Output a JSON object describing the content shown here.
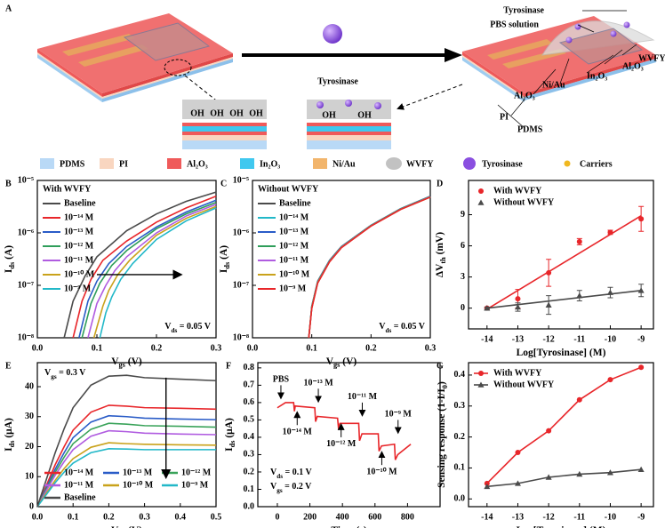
{
  "figure_a": {
    "letter": "A",
    "arrow_label": "Tyrosinase",
    "inset_label": "OH",
    "device_labels": [
      "Tyrosinase",
      "PBS solution",
      "WVFY",
      "Al₂O₃",
      "In₂O₃",
      "Ni/Au",
      "Al₂O₃",
      "PI",
      "PDMS"
    ],
    "legend": [
      {
        "name": "PDMS",
        "color": "#b9d9f6"
      },
      {
        "name": "PI",
        "color": "#f9d6c0"
      },
      {
        "name": "Al₂O₃",
        "color": "#ef5a5a"
      },
      {
        "name": "In₂O₃",
        "color": "#40c8ef"
      },
      {
        "name": "Ni/Au",
        "color": "#f2b56c"
      },
      {
        "name": "WVFY",
        "color": "#9a9a9a"
      },
      {
        "name": "Tyrosinase",
        "color": "#8a4fe0"
      },
      {
        "name": "Carriers",
        "color": "#f0b820"
      }
    ]
  },
  "chart_data": [
    {
      "type": "line",
      "letter": "B",
      "log_y": true,
      "legend_title": "With WVFY",
      "xlabel": [
        "V",
        "gs",
        " (V)"
      ],
      "ylabel": [
        "I",
        "ds",
        " (A)"
      ],
      "annotations": [
        [
          "V",
          "ds",
          " = 0.05 V"
        ]
      ],
      "xlim": [
        0,
        0.3
      ],
      "xticks": [
        {
          "value": 0,
          "label": "0.0"
        },
        0.1,
        0.2,
        0.3
      ],
      "ylim": [
        1e-08,
        1e-05
      ],
      "yticks": [
        {
          "value": 1e-08,
          "label": "10⁻⁸"
        },
        {
          "value": 1e-07,
          "label": "10⁻⁷"
        },
        {
          "value": 1e-06,
          "label": "10⁻⁶"
        },
        {
          "value": 1e-05,
          "label": "10⁻⁵"
        }
      ],
      "series": [
        {
          "name": "Baseline",
          "color": "#4a4a4a",
          "x": [
            0.045,
            0.06,
            0.08,
            0.1,
            0.15,
            0.2,
            0.25,
            0.3
          ],
          "values": [
            1e-08,
            5e-08,
            1.5e-07,
            3.5e-07,
            1.1e-06,
            2.3e-06,
            4e-06,
            6e-06
          ]
        },
        {
          "name": "10⁻¹⁴ M",
          "color": "#e8262a",
          "x": [
            0.06,
            0.075,
            0.09,
            0.11,
            0.15,
            0.2,
            0.25,
            0.3
          ],
          "values": [
            1e-08,
            5e-08,
            1.3e-07,
            3e-07,
            7e-07,
            1.6e-06,
            3e-06,
            5e-06
          ]
        },
        {
          "name": "10⁻¹³ M",
          "color": "#2a5cc7",
          "x": [
            0.07,
            0.085,
            0.1,
            0.12,
            0.15,
            0.2,
            0.25,
            0.3
          ],
          "values": [
            1e-08,
            5e-08,
            1.2e-07,
            2.6e-07,
            5.5e-07,
            1.3e-06,
            2.5e-06,
            4.2e-06
          ]
        },
        {
          "name": "10⁻¹² M",
          "color": "#2f9e5a",
          "x": [
            0.075,
            0.09,
            0.105,
            0.125,
            0.15,
            0.2,
            0.25,
            0.3
          ],
          "values": [
            1e-08,
            4.5e-08,
            1.1e-07,
            2.4e-07,
            4.6e-07,
            1.2e-06,
            2.3e-06,
            3.8e-06
          ]
        },
        {
          "name": "10⁻¹¹ M",
          "color": "#b05ce0",
          "x": [
            0.085,
            0.1,
            0.115,
            0.13,
            0.15,
            0.2,
            0.25,
            0.3
          ],
          "values": [
            1e-08,
            4.5e-08,
            1e-07,
            1.9e-07,
            3.5e-07,
            1e-06,
            2.1e-06,
            3.5e-06
          ]
        },
        {
          "name": "10⁻¹⁰ M",
          "color": "#c9a21b",
          "x": [
            0.095,
            0.11,
            0.12,
            0.135,
            0.155,
            0.2,
            0.25,
            0.3
          ],
          "values": [
            1e-08,
            4e-08,
            8e-08,
            1.6e-07,
            3e-07,
            9e-07,
            1.9e-06,
            3.2e-06
          ]
        },
        {
          "name": "10⁻⁹ M",
          "color": "#22b8c8",
          "x": [
            0.105,
            0.115,
            0.125,
            0.14,
            0.16,
            0.2,
            0.25,
            0.3
          ],
          "values": [
            1e-08,
            3e-08,
            6e-08,
            1.3e-07,
            2.6e-07,
            7.5e-07,
            1.7e-06,
            3e-06
          ]
        }
      ]
    },
    {
      "type": "line",
      "letter": "C",
      "log_y": true,
      "legend_title": "Without WVFY",
      "xlabel": [
        "V",
        "gs",
        " (V)"
      ],
      "ylabel": [
        "I",
        "ds",
        " (A)"
      ],
      "annotations": [
        [
          "V",
          "ds",
          " = 0.05 V"
        ]
      ],
      "xlim": [
        0,
        0.3
      ],
      "xticks": [
        {
          "value": 0,
          "label": "0.0"
        },
        0.1,
        0.2,
        0.3
      ],
      "ylim": [
        1e-08,
        1e-05
      ],
      "yticks": [
        {
          "value": 1e-08,
          "label": "10⁻⁸"
        },
        {
          "value": 1e-07,
          "label": "10⁻⁷"
        },
        {
          "value": 1e-06,
          "label": "10⁻⁶"
        },
        {
          "value": 1e-05,
          "label": "10⁻⁵"
        }
      ],
      "x": [
        0.095,
        0.1,
        0.11,
        0.13,
        0.15,
        0.2,
        0.25,
        0.3
      ],
      "series": [
        {
          "name": "Baseline",
          "color": "#4a4a4a",
          "values": [
            1e-08,
            4e-08,
            1.2e-07,
            3e-07,
            5.5e-07,
            1.4e-06,
            2.9e-06,
            5e-06
          ]
        },
        {
          "name": "10⁻¹⁴ M",
          "color": "#22b8c8",
          "values": [
            1e-08,
            3.9e-08,
            1.18e-07,
            2.95e-07,
            5.45e-07,
            1.39e-06,
            2.88e-06,
            4.95e-06
          ]
        },
        {
          "name": "10⁻¹³ M",
          "color": "#2a5cc7",
          "values": [
            1e-08,
            3.8e-08,
            1.16e-07,
            2.9e-07,
            5.4e-07,
            1.38e-06,
            2.86e-06,
            4.9e-06
          ]
        },
        {
          "name": "10⁻¹² M",
          "color": "#2f9e5a",
          "values": [
            1e-08,
            3.8e-08,
            1.15e-07,
            2.88e-07,
            5.35e-07,
            1.37e-06,
            2.84e-06,
            4.88e-06
          ]
        },
        {
          "name": "10⁻¹¹ M",
          "color": "#b05ce0",
          "values": [
            1e-08,
            3.7e-08,
            1.13e-07,
            2.85e-07,
            5.3e-07,
            1.36e-06,
            2.82e-06,
            4.85e-06
          ]
        },
        {
          "name": "10⁻¹⁰ M",
          "color": "#c9a21b",
          "values": [
            1e-08,
            3.7e-08,
            1.12e-07,
            2.82e-07,
            5.25e-07,
            1.36e-06,
            2.81e-06,
            4.82e-06
          ]
        },
        {
          "name": "10⁻⁹ M",
          "color": "#e8262a",
          "values": [
            1e-08,
            3.6e-08,
            1.1e-07,
            2.8e-07,
            5.2e-07,
            1.35e-06,
            2.8e-06,
            4.8e-06
          ]
        }
      ]
    },
    {
      "type": "scatter",
      "letter": "D",
      "xlabel": [
        "Log[Tyrosinase] (M)"
      ],
      "ylabel": [
        "ΔV",
        "th",
        " (mV)"
      ],
      "xlim": [
        -14.6,
        -8.6
      ],
      "xticks": [
        -14,
        -13,
        -12,
        -11,
        -10,
        -9
      ],
      "ylim": [
        -2,
        12.3
      ],
      "yticks": [
        0,
        3,
        6,
        9
      ],
      "x": [
        -14,
        -13,
        -12,
        -11,
        -10,
        -9
      ],
      "series": [
        {
          "name": "With WVFY",
          "color": "#e8262a",
          "marker": "circle",
          "values": [
            0,
            0.9,
            3.4,
            6.4,
            7.3,
            8.6
          ],
          "errors": [
            0.1,
            0.9,
            1.3,
            0.3,
            0.2,
            1.2
          ],
          "fit": {
            "x": [
              -14,
              -9
            ],
            "values": [
              -0.1,
              8.9
            ]
          }
        },
        {
          "name": "Without WVFY",
          "color": "#4a4a4a",
          "marker": "triangle",
          "values": [
            0,
            0.1,
            0.3,
            1.2,
            1.5,
            1.7
          ],
          "errors": [
            0.1,
            0.4,
            0.9,
            0.5,
            0.5,
            0.6
          ],
          "fit": {
            "x": [
              -14,
              -9
            ],
            "values": [
              0,
              1.7
            ]
          }
        }
      ]
    },
    {
      "type": "line",
      "letter": "E",
      "xlabel": [
        "V",
        "ds",
        " (V)"
      ],
      "ylabel": [
        "I",
        "ds",
        " (μA)"
      ],
      "annotations": [
        [
          "V",
          "gs",
          " = 0.3 V"
        ]
      ],
      "xlim": [
        0,
        0.5
      ],
      "xticks": [
        {
          "value": 0,
          "label": "0.0"
        },
        0.1,
        0.2,
        0.3,
        0.4,
        0.5
      ],
      "ylim": [
        0,
        48
      ],
      "yticks": [
        0,
        10,
        20,
        30,
        40
      ],
      "x": [
        0,
        0.025,
        0.05,
        0.075,
        0.1,
        0.15,
        0.2,
        0.25,
        0.3,
        0.4,
        0.5
      ],
      "series": [
        {
          "name": "10⁻¹⁴ M",
          "color": "#e8262a",
          "values": [
            0,
            7,
            14,
            20,
            25.5,
            31.5,
            33.8,
            33.5,
            33,
            32.8,
            32.5
          ]
        },
        {
          "name": "10⁻¹³ M",
          "color": "#2a5cc7",
          "values": [
            0,
            6.3,
            12.5,
            18,
            23,
            28.2,
            30.3,
            30,
            29.5,
            29.2,
            29
          ]
        },
        {
          "name": "10⁻¹² M",
          "color": "#3aa35a",
          "values": [
            0,
            5.8,
            11.5,
            16.5,
            21,
            25.8,
            27.8,
            27.5,
            27,
            26.8,
            26.5
          ]
        },
        {
          "name": "10⁻¹¹ M",
          "color": "#b05ce0",
          "values": [
            0,
            5.3,
            10.5,
            15,
            19,
            23.5,
            25.3,
            25,
            24.5,
            24.2,
            24
          ]
        },
        {
          "name": "10⁻¹⁰ M",
          "color": "#c9a21b",
          "values": [
            0,
            4.5,
            8.8,
            12.7,
            16,
            19.8,
            21.3,
            21,
            20.8,
            20.6,
            20.5
          ]
        },
        {
          "name": "10⁻⁹ M",
          "color": "#22b8c8",
          "values": [
            0,
            4,
            8,
            11.5,
            14.5,
            18,
            19.3,
            19.2,
            19,
            19,
            19
          ]
        },
        {
          "name": "Baseline",
          "color": "#4a4a4a",
          "values": [
            0,
            9,
            18,
            26,
            33,
            40.5,
            43.5,
            43.8,
            43,
            42.5,
            42
          ]
        }
      ]
    },
    {
      "type": "line",
      "letter": "F",
      "xlabel": [
        "Time (s)"
      ],
      "ylabel": [
        "I",
        "ds",
        " (μA)"
      ],
      "annotations": [
        [
          "V",
          "ds",
          " = 0.1 V"
        ],
        [
          "V",
          "gs",
          " = 0.2 V"
        ]
      ],
      "events": [
        "PBS",
        "10⁻¹⁴ M",
        "10⁻¹³ M",
        "10⁻¹² M",
        "10⁻¹¹ M",
        "10⁻¹⁰ M",
        "10⁻⁹ M"
      ],
      "xlim": [
        -120,
        1000
      ],
      "xticks": [
        0,
        200,
        400,
        600,
        800
      ],
      "ylim": [
        0,
        0.83
      ],
      "yticks": [
        {
          "value": 0,
          "label": "0.0"
        },
        0.1,
        0.2,
        0.3,
        0.4,
        0.5,
        0.6,
        0.7,
        0.8
      ],
      "x": [
        0,
        50,
        100,
        105,
        110,
        230,
        235,
        245,
        370,
        375,
        385,
        500,
        505,
        520,
        620,
        625,
        640,
        720,
        725,
        740,
        820
      ],
      "series": [
        {
          "name": "Current",
          "color": "#e8262a",
          "values": [
            0.57,
            0.6,
            0.6,
            0.55,
            0.58,
            0.57,
            0.49,
            0.52,
            0.51,
            0.46,
            0.48,
            0.48,
            0.38,
            0.42,
            0.42,
            0.32,
            0.35,
            0.36,
            0.27,
            0.3,
            0.36
          ]
        }
      ]
    },
    {
      "type": "line",
      "letter": "G",
      "xlabel": [
        "Log[Tyrosinase] (M)"
      ],
      "ylabel": [
        "Sensing response (1-I/I",
        "0",
        ")"
      ],
      "xlim": [
        -14.6,
        -8.6
      ],
      "xticks": [
        -14,
        -13,
        -12,
        -11,
        -10,
        -9
      ],
      "ylim": [
        -0.025,
        0.44
      ],
      "yticks": [
        {
          "value": 0,
          "label": "0.0"
        },
        0.1,
        0.2,
        0.3,
        0.4
      ],
      "x": [
        -14,
        -13,
        -12,
        -11,
        -10,
        -9
      ],
      "series": [
        {
          "name": "With WVFY",
          "color": "#e8262a",
          "marker": "circle",
          "values": [
            0.05,
            0.15,
            0.22,
            0.32,
            0.385,
            0.425
          ]
        },
        {
          "name": "Without WVFY",
          "color": "#4a4a4a",
          "marker": "triangle",
          "values": [
            0.04,
            0.05,
            0.07,
            0.08,
            0.085,
            0.095
          ]
        }
      ]
    }
  ]
}
